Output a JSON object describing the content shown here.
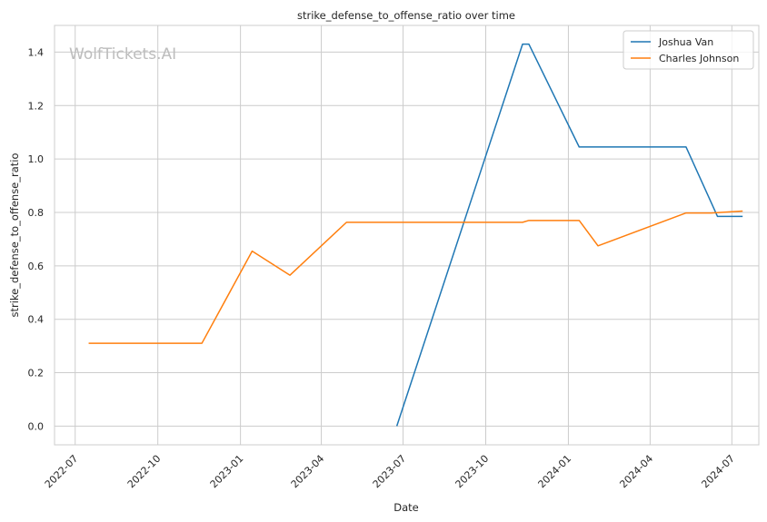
{
  "chart_data": {
    "type": "line",
    "title": "strike_defense_to_offense_ratio over time",
    "xlabel": "Date",
    "ylabel": "strike_defense_to_offense_ratio",
    "watermark": "WolfTickets.AI",
    "xlim": [
      "2022-06-08",
      "2024-07-31"
    ],
    "ylim": [
      -0.07,
      1.5
    ],
    "x_ticks": [
      "2022-07",
      "2022-10",
      "2023-01",
      "2023-04",
      "2023-07",
      "2023-10",
      "2024-01",
      "2024-04",
      "2024-07"
    ],
    "y_ticks": [
      0.0,
      0.2,
      0.4,
      0.6,
      0.8,
      1.0,
      1.2,
      1.4
    ],
    "y_tick_labels": [
      "0.0",
      "0.2",
      "0.4",
      "0.6",
      "0.8",
      "1.0",
      "1.2",
      "1.4"
    ],
    "grid": true,
    "legend_position": "top-right",
    "series": [
      {
        "name": "Joshua Van",
        "color": "#1f77b4",
        "points": [
          {
            "x": "2023-06-24",
            "y": 0.0
          },
          {
            "x": "2023-11-11",
            "y": 1.43
          },
          {
            "x": "2023-11-18",
            "y": 1.43
          },
          {
            "x": "2024-01-13",
            "y": 1.045
          },
          {
            "x": "2024-05-11",
            "y": 1.045
          },
          {
            "x": "2024-06-15",
            "y": 0.785
          },
          {
            "x": "2024-07-13",
            "y": 0.785
          }
        ]
      },
      {
        "name": "Charles Johnson",
        "color": "#ff7f0e",
        "points": [
          {
            "x": "2022-07-16",
            "y": 0.31
          },
          {
            "x": "2022-11-19",
            "y": 0.31
          },
          {
            "x": "2023-01-14",
            "y": 0.655
          },
          {
            "x": "2023-02-25",
            "y": 0.565
          },
          {
            "x": "2023-04-29",
            "y": 0.763
          },
          {
            "x": "2023-11-11",
            "y": 0.763
          },
          {
            "x": "2023-11-18",
            "y": 0.77
          },
          {
            "x": "2024-01-13",
            "y": 0.77
          },
          {
            "x": "2024-02-03",
            "y": 0.675
          },
          {
            "x": "2024-05-11",
            "y": 0.798
          },
          {
            "x": "2024-06-08",
            "y": 0.798
          },
          {
            "x": "2024-07-13",
            "y": 0.805
          }
        ]
      }
    ]
  }
}
